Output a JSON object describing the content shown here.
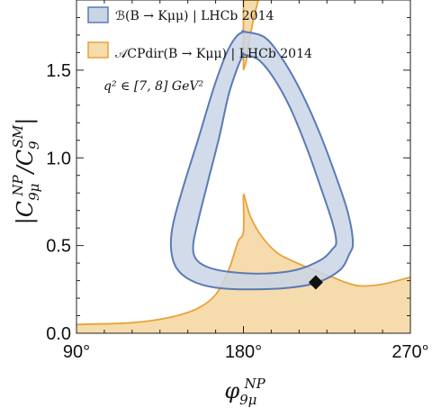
{
  "chart_data": {
    "type": "area",
    "xlabel": "φ9μNP",
    "ylabel": "|C9μNP/C9SM|",
    "x_unit": "°",
    "xlim": [
      90,
      270
    ],
    "ylim": [
      0,
      1.9
    ],
    "x_ticks": [
      {
        "value": 90,
        "label": "90°"
      },
      {
        "value": 180,
        "label": "180°"
      },
      {
        "value": 270,
        "label": "270°"
      }
    ],
    "y_ticks": [
      {
        "value": 0.0,
        "label": "0.0"
      },
      {
        "value": 0.5,
        "label": "0.5"
      },
      {
        "value": 1.0,
        "label": "1.0"
      },
      {
        "value": 1.5,
        "label": "1.5"
      }
    ],
    "grid": false,
    "legend_position": "top-left",
    "note": "q² ∈ [7, 8] GeV²",
    "series": [
      {
        "name": "ℬ(B → Kμμ) | LHCb 2014",
        "color_fill": "#c9d5e6",
        "color_edge": "#5b7bb4",
        "outer": [
          [
            180,
            1.72
          ],
          [
            191,
            1.69
          ],
          [
            200,
            1.58
          ],
          [
            210,
            1.4
          ],
          [
            220,
            1.17
          ],
          [
            228,
            0.95
          ],
          [
            236,
            0.7
          ],
          [
            239,
            0.52
          ],
          [
            237,
            0.45
          ],
          [
            232,
            0.36
          ],
          [
            220,
            0.29
          ],
          [
            205,
            0.26
          ],
          [
            185,
            0.25
          ],
          [
            165,
            0.26
          ],
          [
            152,
            0.3
          ],
          [
            144,
            0.37
          ],
          [
            141,
            0.48
          ],
          [
            142,
            0.62
          ],
          [
            148,
            0.85
          ],
          [
            156,
            1.12
          ],
          [
            164,
            1.4
          ],
          [
            171,
            1.6
          ],
          [
            176,
            1.69
          ],
          [
            180,
            1.72
          ]
        ],
        "inner": [
          [
            180,
            1.59
          ],
          [
            188,
            1.56
          ],
          [
            196,
            1.46
          ],
          [
            205,
            1.29
          ],
          [
            214,
            1.06
          ],
          [
            222,
            0.82
          ],
          [
            228,
            0.63
          ],
          [
            230,
            0.52
          ],
          [
            228,
            0.48
          ],
          [
            222,
            0.42
          ],
          [
            208,
            0.36
          ],
          [
            190,
            0.34
          ],
          [
            172,
            0.35
          ],
          [
            160,
            0.38
          ],
          [
            154,
            0.43
          ],
          [
            153,
            0.51
          ],
          [
            156,
            0.66
          ],
          [
            161,
            0.87
          ],
          [
            167,
            1.12
          ],
          [
            172,
            1.36
          ],
          [
            177,
            1.52
          ],
          [
            180,
            1.59
          ]
        ]
      },
      {
        "name": "𝒜CPdir(B → Kμμ) | LHCb 2014",
        "color_fill": "#f6dcac",
        "color_edge": "#e9a23a",
        "upper_band_x": [
          180,
          188
        ],
        "lower_region": [
          [
            90,
            0.05
          ],
          [
            120,
            0.06
          ],
          [
            140,
            0.09
          ],
          [
            155,
            0.14
          ],
          [
            165,
            0.22
          ],
          [
            172,
            0.36
          ],
          [
            177,
            0.52
          ],
          [
            180,
            0.58
          ],
          [
            180,
            0.78
          ],
          [
            181,
            0.76
          ],
          [
            184,
            0.66
          ],
          [
            190,
            0.55
          ],
          [
            198,
            0.46
          ],
          [
            207,
            0.41
          ],
          [
            218,
            0.36
          ],
          [
            228,
            0.32
          ],
          [
            235,
            0.29
          ],
          [
            243,
            0.27
          ],
          [
            255,
            0.28
          ],
          [
            270,
            0.32
          ],
          [
            270,
            0
          ]
        ]
      }
    ],
    "markers": [
      {
        "type": "diamond",
        "x": 219,
        "y": 0.29,
        "color": "#111111"
      }
    ]
  }
}
